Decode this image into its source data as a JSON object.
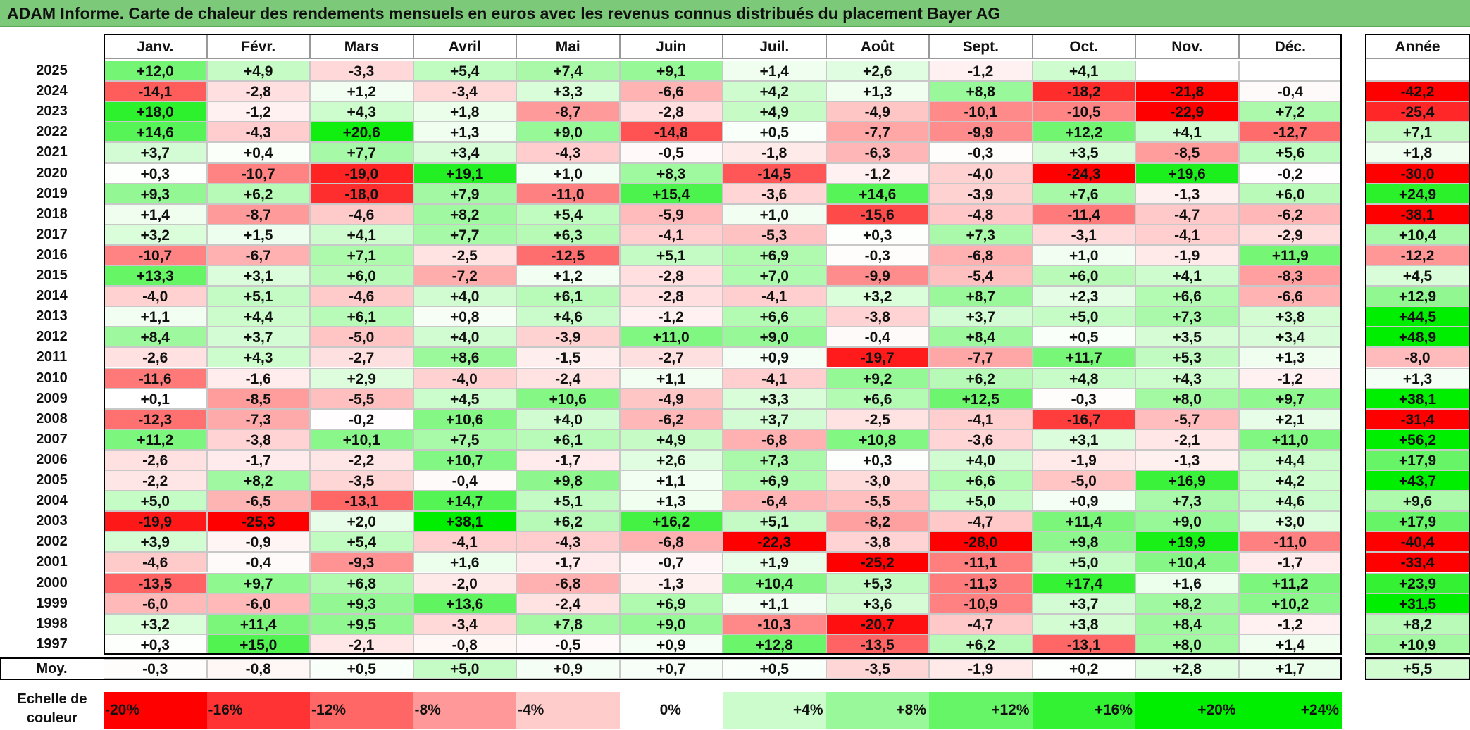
{
  "title": "ADAM Informe. Carte de chaleur des rendements mensuels en euros avec les revenus connus distribués du placement Bayer AG",
  "months": [
    "Janv.",
    "Févr.",
    "Mars",
    "Avril",
    "Mai",
    "Juin",
    "Juil.",
    "Août",
    "Sept.",
    "Oct.",
    "Nov.",
    "Déc."
  ],
  "annee_label": "Année",
  "moy_label": "Moy.",
  "scale_label_line1": "Echelle de",
  "scale_label_line2": "couleur",
  "colors": {
    "title_bar": "#7dc97a",
    "negative": "#ff0000",
    "neutral": "#ffffff",
    "positive": "#00ee00"
  },
  "chart_data": {
    "type": "heatmap",
    "title": "ADAM Informe. Carte de chaleur des rendements mensuels en euros avec les revenus connus distribués du placement Bayer AG",
    "columns": [
      "Janv.",
      "Févr.",
      "Mars",
      "Avril",
      "Mai",
      "Juin",
      "Juil.",
      "Août",
      "Sept.",
      "Oct.",
      "Nov.",
      "Déc.",
      "Année"
    ],
    "rows": [
      {
        "year": "2025",
        "values": [
          "+12,0",
          "+4,9",
          "-3,3",
          "+5,4",
          "+7,4",
          "+9,1",
          "+1,4",
          "+2,6",
          "-1,2",
          "+4,1",
          "",
          ""
        ],
        "annual": ""
      },
      {
        "year": "2024",
        "values": [
          "-14,1",
          "-2,8",
          "+1,2",
          "-3,4",
          "+3,3",
          "-6,6",
          "+4,2",
          "+1,3",
          "+8,8",
          "-18,2",
          "-21,8",
          "-0,4"
        ],
        "annual": "-42,2"
      },
      {
        "year": "2023",
        "values": [
          "+18,0",
          "-1,2",
          "+4,3",
          "+1,8",
          "-8,7",
          "-2,8",
          "+4,9",
          "-4,9",
          "-10,1",
          "-10,5",
          "-22,9",
          "+7,2"
        ],
        "annual": "-25,4"
      },
      {
        "year": "2022",
        "values": [
          "+14,6",
          "-4,3",
          "+20,6",
          "+1,3",
          "+9,0",
          "-14,8",
          "+0,5",
          "-7,7",
          "-9,9",
          "+12,2",
          "+4,1",
          "-12,7"
        ],
        "annual": "+7,1"
      },
      {
        "year": "2021",
        "values": [
          "+3,7",
          "+0,4",
          "+7,7",
          "+3,4",
          "-4,3",
          "-0,5",
          "-1,8",
          "-6,3",
          "-0,3",
          "+3,5",
          "-8,5",
          "+5,6"
        ],
        "annual": "+1,8"
      },
      {
        "year": "2020",
        "values": [
          "+0,3",
          "-10,7",
          "-19,0",
          "+19,1",
          "+1,0",
          "+8,3",
          "-14,5",
          "-1,2",
          "-4,0",
          "-24,3",
          "+19,6",
          "-0,2"
        ],
        "annual": "-30,0"
      },
      {
        "year": "2019",
        "values": [
          "+9,3",
          "+6,2",
          "-18,0",
          "+7,9",
          "-11,0",
          "+15,4",
          "-3,6",
          "+14,6",
          "-3,9",
          "+7,6",
          "-1,3",
          "+6,0"
        ],
        "annual": "+24,9"
      },
      {
        "year": "2018",
        "values": [
          "+1,4",
          "-8,7",
          "-4,6",
          "+8,2",
          "+5,4",
          "-5,9",
          "+1,0",
          "-15,6",
          "-4,8",
          "-11,4",
          "-4,7",
          "-6,2"
        ],
        "annual": "-38,1"
      },
      {
        "year": "2017",
        "values": [
          "+3,2",
          "+1,5",
          "+4,1",
          "+7,7",
          "+6,3",
          "-4,1",
          "-5,3",
          "+0,3",
          "+7,3",
          "-3,1",
          "-4,1",
          "-2,9"
        ],
        "annual": "+10,4"
      },
      {
        "year": "2016",
        "values": [
          "-10,7",
          "-6,7",
          "+7,1",
          "-2,5",
          "-12,5",
          "+5,1",
          "+6,9",
          "-0,3",
          "-6,8",
          "+1,0",
          "-1,9",
          "+11,9"
        ],
        "annual": "-12,2"
      },
      {
        "year": "2015",
        "values": [
          "+13,3",
          "+3,1",
          "+6,0",
          "-7,2",
          "+1,2",
          "-2,8",
          "+7,0",
          "-9,9",
          "-5,4",
          "+6,0",
          "+4,1",
          "-8,3"
        ],
        "annual": "+4,5"
      },
      {
        "year": "2014",
        "values": [
          "-4,0",
          "+5,1",
          "-4,6",
          "+4,0",
          "+6,1",
          "-2,8",
          "-4,1",
          "+3,2",
          "+8,7",
          "+2,3",
          "+6,6",
          "-6,6"
        ],
        "annual": "+12,9"
      },
      {
        "year": "2013",
        "values": [
          "+1,1",
          "+4,4",
          "+6,1",
          "+0,8",
          "+4,6",
          "-1,2",
          "+6,6",
          "-3,8",
          "+3,7",
          "+5,0",
          "+7,3",
          "+3,8"
        ],
        "annual": "+44,5"
      },
      {
        "year": "2012",
        "values": [
          "+8,4",
          "+3,7",
          "-5,0",
          "+4,0",
          "-3,9",
          "+11,0",
          "+9,0",
          "-0,4",
          "+8,4",
          "+0,5",
          "+3,5",
          "+3,4"
        ],
        "annual": "+48,9"
      },
      {
        "year": "2011",
        "values": [
          "-2,6",
          "+4,3",
          "-2,7",
          "+8,6",
          "-1,5",
          "-2,7",
          "+0,9",
          "-19,7",
          "-7,7",
          "+11,7",
          "+5,3",
          "+1,3"
        ],
        "annual": "-8,0"
      },
      {
        "year": "2010",
        "values": [
          "-11,6",
          "-1,6",
          "+2,9",
          "-4,0",
          "-2,4",
          "+1,1",
          "-4,1",
          "+9,2",
          "+6,2",
          "+4,8",
          "+4,3",
          "-1,2"
        ],
        "annual": "+1,3"
      },
      {
        "year": "2009",
        "values": [
          "+0,1",
          "-8,5",
          "-5,5",
          "+4,5",
          "+10,6",
          "-4,9",
          "+3,3",
          "+6,6",
          "+12,5",
          "-0,3",
          "+8,0",
          "+9,7"
        ],
        "annual": "+38,1"
      },
      {
        "year": "2008",
        "values": [
          "-12,3",
          "-7,3",
          "-0,2",
          "+10,6",
          "+4,0",
          "-6,2",
          "+3,7",
          "-2,5",
          "-4,1",
          "-16,7",
          "-5,7",
          "+2,1"
        ],
        "annual": "-31,4"
      },
      {
        "year": "2007",
        "values": [
          "+11,2",
          "-3,8",
          "+10,1",
          "+7,5",
          "+6,1",
          "+4,9",
          "-6,8",
          "+10,8",
          "-3,6",
          "+3,1",
          "-2,1",
          "+11,0"
        ],
        "annual": "+56,2"
      },
      {
        "year": "2006",
        "values": [
          "-2,6",
          "-1,7",
          "-2,2",
          "+10,7",
          "-1,7",
          "+2,6",
          "+7,3",
          "+0,3",
          "+4,0",
          "-1,9",
          "-1,3",
          "+4,4"
        ],
        "annual": "+17,9"
      },
      {
        "year": "2005",
        "values": [
          "-2,2",
          "+8,2",
          "-3,5",
          "-0,4",
          "+9,8",
          "+1,1",
          "+6,9",
          "-3,0",
          "+6,6",
          "-5,0",
          "+16,9",
          "+4,2"
        ],
        "annual": "+43,7"
      },
      {
        "year": "2004",
        "values": [
          "+5,0",
          "-6,5",
          "-13,1",
          "+14,7",
          "+5,1",
          "+1,3",
          "-6,4",
          "-5,5",
          "+5,0",
          "+0,9",
          "+7,3",
          "+4,6"
        ],
        "annual": "+9,6"
      },
      {
        "year": "2003",
        "values": [
          "-19,9",
          "-25,3",
          "+2,0",
          "+38,1",
          "+6,2",
          "+16,2",
          "+5,1",
          "-8,2",
          "-4,7",
          "+11,4",
          "+9,0",
          "+3,0"
        ],
        "annual": "+17,9"
      },
      {
        "year": "2002",
        "values": [
          "+3,9",
          "-0,9",
          "+5,4",
          "-4,1",
          "-4,3",
          "-6,8",
          "-22,3",
          "-3,8",
          "-28,0",
          "+9,8",
          "+19,9",
          "-11,0"
        ],
        "annual": "-40,4"
      },
      {
        "year": "2001",
        "values": [
          "-4,6",
          "-0,4",
          "-9,3",
          "+1,6",
          "-1,7",
          "-0,7",
          "+1,9",
          "-25,2",
          "-11,1",
          "+5,0",
          "+10,4",
          "-1,7"
        ],
        "annual": "-33,4"
      },
      {
        "year": "2000",
        "values": [
          "-13,5",
          "+9,7",
          "+6,8",
          "-2,0",
          "-6,8",
          "-1,3",
          "+10,4",
          "+5,3",
          "-11,3",
          "+17,4",
          "+1,6",
          "+11,2"
        ],
        "annual": "+23,9"
      },
      {
        "year": "1999",
        "values": [
          "-6,0",
          "-6,0",
          "+9,3",
          "+13,6",
          "-2,4",
          "+6,9",
          "+1,1",
          "+3,6",
          "-10,9",
          "+3,7",
          "+8,2",
          "+10,2"
        ],
        "annual": "+31,5"
      },
      {
        "year": "1998",
        "values": [
          "+3,2",
          "+11,4",
          "+9,5",
          "-3,4",
          "+7,8",
          "+9,0",
          "-10,3",
          "-20,7",
          "-4,7",
          "+3,8",
          "+8,4",
          "-1,2"
        ],
        "annual": "+8,2"
      },
      {
        "year": "1997",
        "values": [
          "+0,3",
          "+15,0",
          "-2,1",
          "-0,8",
          "-0,5",
          "+0,9",
          "+12,8",
          "-13,5",
          "+6,2",
          "-13,1",
          "+8,0",
          "+1,4"
        ],
        "annual": "+10,9"
      }
    ],
    "average": {
      "label": "Moy.",
      "values": [
        "-0,3",
        "-0,8",
        "+0,5",
        "+5,0",
        "+0,9",
        "+0,7",
        "+0,5",
        "-3,5",
        "-1,9",
        "+0,2",
        "+2,8",
        "+1,7"
      ],
      "annual": "+5,5"
    },
    "color_scale": [
      "-20%",
      "-16%",
      "-12%",
      "-8%",
      "-4%",
      "0%",
      "+4%",
      "+8%",
      "+12%",
      "+16%",
      "+20%",
      "+24%"
    ],
    "color_scale_values": [
      -20,
      -16,
      -12,
      -8,
      -4,
      0,
      4,
      8,
      12,
      16,
      20,
      24
    ]
  }
}
